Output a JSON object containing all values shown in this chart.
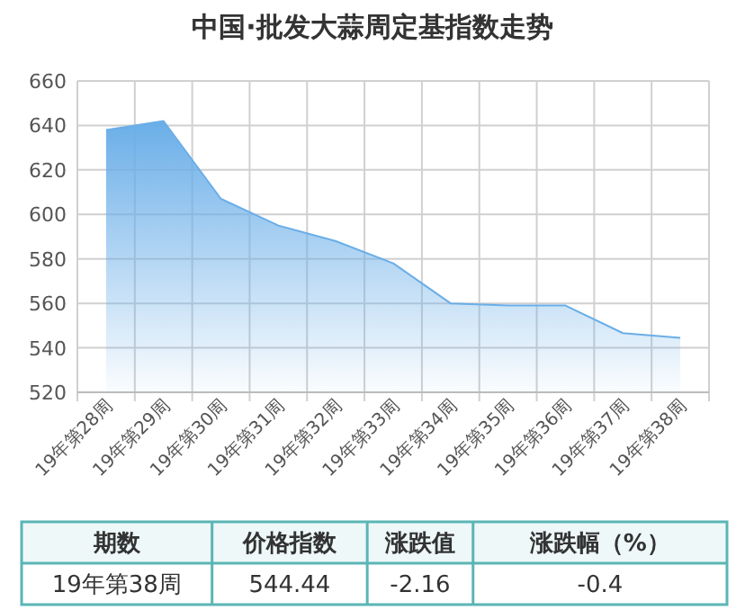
{
  "chart_data": {
    "type": "area",
    "title": "中国·批发大蒜周定基指数走势",
    "categories": [
      "19年第28周",
      "19年第29周",
      "19年第30周",
      "19年第31周",
      "19年第32周",
      "19年第33周",
      "19年第34周",
      "19年第35周",
      "19年第36周",
      "19年第37周",
      "19年第38周"
    ],
    "series": [
      {
        "color": "#6aaee8",
        "values": [
          638,
          642,
          607,
          595,
          588,
          578,
          560,
          559,
          559,
          546.6,
          544.44
        ]
      }
    ],
    "ylim": [
      520,
      660
    ],
    "yticks": [
      520,
      540,
      560,
      580,
      600,
      620,
      640,
      660
    ],
    "grid": true,
    "annotations": [
      "期数",
      "价格指数",
      "涨跌值",
      "涨跌幅（%）",
      "19年第38周",
      "544.44",
      "-2.16",
      "-0.4"
    ]
  }
}
